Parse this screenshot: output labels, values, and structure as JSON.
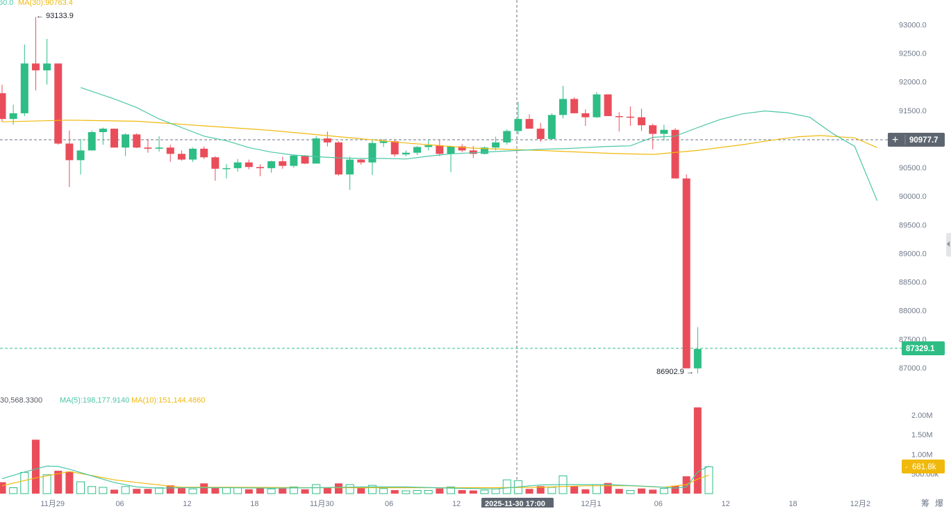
{
  "legend": {
    "price_prefix": "60.0",
    "ma30_label": "MA(30):90763.4",
    "volume_prefix": "30,568.3300",
    "vol_ma5_label": "MA(5):198,177.9140",
    "vol_ma10_label": "MA(10):151,144.4860"
  },
  "annotations": {
    "high_label": "93133.9",
    "low_label": "86902.9",
    "crosshair_price": "90977.7",
    "last_price": "87329.1",
    "volume_last": "681.8k",
    "crosshair_time": "2025-11-30 17:00"
  },
  "axis": {
    "price_ticks": [
      "93000.0",
      "92500.0",
      "92000.0",
      "91500.0",
      "91000.0",
      "90500.0",
      "90000.0",
      "89500.0",
      "89000.0",
      "88500.0",
      "88000.0",
      "87500.0",
      "87000.0"
    ],
    "volume_ticks": [
      "2.00M",
      "1.50M",
      "1.00M",
      "500.00k"
    ],
    "time_ticks": [
      "11月29",
      "06",
      "12",
      "18",
      "11月30",
      "06",
      "12",
      "12月1",
      "06",
      "12",
      "18",
      "12月2"
    ],
    "corner_buttons": [
      "筹",
      "爆"
    ]
  },
  "colors": {
    "up": "#2ebd85",
    "down": "#ea4d5a",
    "ma_fast": "#4bc6a6",
    "ma_slow": "#f0b90b",
    "crosshair_tag": "#5d6670",
    "grid_dash": "#9aa1aa"
  },
  "chart_data": {
    "type": "candlestick",
    "interval": "hourly",
    "candles": [
      {
        "t": "11-28 20:00",
        "o": 91800,
        "h": 91950,
        "l": 91300,
        "c": 91350
      },
      {
        "t": "11-28 21:00",
        "o": 91350,
        "h": 91600,
        "l": 91250,
        "c": 91450
      },
      {
        "t": "11-28 22:00",
        "o": 91450,
        "h": 92650,
        "l": 91400,
        "c": 92320
      },
      {
        "t": "11-28 23:00",
        "o": 92320,
        "h": 93133.9,
        "l": 91850,
        "c": 92200
      },
      {
        "t": "11-29 00:00",
        "o": 92200,
        "h": 92750,
        "l": 91950,
        "c": 92320
      },
      {
        "t": "11-29 01:00",
        "o": 92320,
        "h": 92320,
        "l": 90900,
        "c": 90920
      },
      {
        "t": "11-29 02:00",
        "o": 90920,
        "h": 91150,
        "l": 90160,
        "c": 90630
      },
      {
        "t": "11-29 03:00",
        "o": 90630,
        "h": 91000,
        "l": 90380,
        "c": 90800
      },
      {
        "t": "11-29 04:00",
        "o": 90800,
        "h": 91150,
        "l": 90800,
        "c": 91120
      },
      {
        "t": "11-29 05:00",
        "o": 91120,
        "h": 91200,
        "l": 90900,
        "c": 91180
      },
      {
        "t": "11-29 06:00",
        "o": 91180,
        "h": 91180,
        "l": 90860,
        "c": 90850
      },
      {
        "t": "11-29 07:00",
        "o": 90850,
        "h": 91100,
        "l": 90700,
        "c": 91080
      },
      {
        "t": "11-29 08:00",
        "o": 91080,
        "h": 91100,
        "l": 90840,
        "c": 90850
      },
      {
        "t": "11-29 09:00",
        "o": 90850,
        "h": 91000,
        "l": 90760,
        "c": 90830
      },
      {
        "t": "11-29 10:00",
        "o": 90830,
        "h": 91050,
        "l": 90780,
        "c": 90850
      },
      {
        "t": "11-29 11:00",
        "o": 90850,
        "h": 90900,
        "l": 90600,
        "c": 90740
      },
      {
        "t": "11-29 12:00",
        "o": 90740,
        "h": 90800,
        "l": 90620,
        "c": 90640
      },
      {
        "t": "11-29 13:00",
        "o": 90640,
        "h": 90850,
        "l": 90600,
        "c": 90830
      },
      {
        "t": "11-29 14:00",
        "o": 90830,
        "h": 90870,
        "l": 90650,
        "c": 90680
      },
      {
        "t": "11-29 15:00",
        "o": 90680,
        "h": 90700,
        "l": 90270,
        "c": 90480
      },
      {
        "t": "11-29 16:00",
        "o": 90480,
        "h": 90560,
        "l": 90310,
        "c": 90490
      },
      {
        "t": "11-29 17:00",
        "o": 90490,
        "h": 90650,
        "l": 90430,
        "c": 90590
      },
      {
        "t": "11-29 18:00",
        "o": 90590,
        "h": 90640,
        "l": 90470,
        "c": 90510
      },
      {
        "t": "11-29 19:00",
        "o": 90510,
        "h": 90560,
        "l": 90350,
        "c": 90490
      },
      {
        "t": "11-29 20:00",
        "o": 90490,
        "h": 90620,
        "l": 90410,
        "c": 90610
      },
      {
        "t": "11-29 21:00",
        "o": 90610,
        "h": 90690,
        "l": 90480,
        "c": 90530
      },
      {
        "t": "11-29 22:00",
        "o": 90530,
        "h": 90730,
        "l": 90500,
        "c": 90710
      },
      {
        "t": "11-29 23:00",
        "o": 90710,
        "h": 90720,
        "l": 90560,
        "c": 90570
      },
      {
        "t": "11-30 00:00",
        "o": 90570,
        "h": 91050,
        "l": 90570,
        "c": 91010
      },
      {
        "t": "11-30 01:00",
        "o": 91010,
        "h": 91130,
        "l": 90870,
        "c": 90940
      },
      {
        "t": "11-30 02:00",
        "o": 90940,
        "h": 90960,
        "l": 90360,
        "c": 90380
      },
      {
        "t": "11-30 03:00",
        "o": 90380,
        "h": 90690,
        "l": 90110,
        "c": 90640
      },
      {
        "t": "11-30 04:00",
        "o": 90640,
        "h": 90650,
        "l": 90550,
        "c": 90590
      },
      {
        "t": "11-30 05:00",
        "o": 90590,
        "h": 91000,
        "l": 90370,
        "c": 90930
      },
      {
        "t": "11-30 06:00",
        "o": 90930,
        "h": 91000,
        "l": 90860,
        "c": 90960
      },
      {
        "t": "11-30 07:00",
        "o": 90960,
        "h": 90980,
        "l": 90690,
        "c": 90730
      },
      {
        "t": "11-30 08:00",
        "o": 90730,
        "h": 90800,
        "l": 90700,
        "c": 90760
      },
      {
        "t": "11-30 09:00",
        "o": 90760,
        "h": 90880,
        "l": 90720,
        "c": 90860
      },
      {
        "t": "11-30 10:00",
        "o": 90860,
        "h": 90990,
        "l": 90800,
        "c": 90890
      },
      {
        "t": "11-30 11:00",
        "o": 90890,
        "h": 90980,
        "l": 90700,
        "c": 90740
      },
      {
        "t": "11-30 12:00",
        "o": 90740,
        "h": 90880,
        "l": 90420,
        "c": 90870
      },
      {
        "t": "11-30 13:00",
        "o": 90870,
        "h": 90910,
        "l": 90770,
        "c": 90800
      },
      {
        "t": "11-30 14:00",
        "o": 90800,
        "h": 90880,
        "l": 90670,
        "c": 90740
      },
      {
        "t": "11-30 15:00",
        "o": 90740,
        "h": 90870,
        "l": 90730,
        "c": 90850
      },
      {
        "t": "11-30 16:00",
        "o": 90850,
        "h": 91040,
        "l": 90800,
        "c": 90940
      },
      {
        "t": "11-30 17:00",
        "o": 90940,
        "h": 91170,
        "l": 90900,
        "c": 91140
      },
      {
        "t": "11-30 18:00",
        "o": 91140,
        "h": 91650,
        "l": 91080,
        "c": 91350
      },
      {
        "t": "11-30 19:00",
        "o": 91350,
        "h": 91430,
        "l": 91190,
        "c": 91180
      },
      {
        "t": "11-30 20:00",
        "o": 91180,
        "h": 91280,
        "l": 90950,
        "c": 91000
      },
      {
        "t": "11-30 21:00",
        "o": 91000,
        "h": 91450,
        "l": 90990,
        "c": 91420
      },
      {
        "t": "11-30 22:00",
        "o": 91420,
        "h": 91930,
        "l": 91360,
        "c": 91700
      },
      {
        "t": "11-30 23:00",
        "o": 91700,
        "h": 91730,
        "l": 91450,
        "c": 91450
      },
      {
        "t": "12-01 00:00",
        "o": 91450,
        "h": 91520,
        "l": 91230,
        "c": 91380
      },
      {
        "t": "12-01 01:00",
        "o": 91380,
        "h": 91820,
        "l": 91370,
        "c": 91780
      },
      {
        "t": "12-01 02:00",
        "o": 91780,
        "h": 91780,
        "l": 91400,
        "c": 91400
      },
      {
        "t": "12-01 03:00",
        "o": 91400,
        "h": 91470,
        "l": 91130,
        "c": 91390
      },
      {
        "t": "12-01 04:00",
        "o": 91390,
        "h": 91570,
        "l": 91230,
        "c": 91380
      },
      {
        "t": "12-01 05:00",
        "o": 91380,
        "h": 91530,
        "l": 91140,
        "c": 91240
      },
      {
        "t": "12-01 06:00",
        "o": 91240,
        "h": 91270,
        "l": 90820,
        "c": 91090
      },
      {
        "t": "12-01 07:00",
        "o": 91090,
        "h": 91250,
        "l": 90970,
        "c": 91160
      },
      {
        "t": "12-01 08:00",
        "o": 91160,
        "h": 91190,
        "l": 90310,
        "c": 90310
      },
      {
        "t": "12-01 09:00",
        "o": 90310,
        "h": 90380,
        "l": 86990,
        "c": 86990
      },
      {
        "t": "12-01 10:00",
        "o": 86990,
        "h": 87710,
        "l": 86902.9,
        "c": 87329.1
      }
    ],
    "ma_fast_price": [
      [
        7,
        91900
      ],
      [
        10,
        91700
      ],
      [
        12,
        91550
      ],
      [
        14,
        91350
      ],
      [
        16,
        91200
      ],
      [
        18,
        91050
      ],
      [
        20,
        90970
      ],
      [
        22,
        90850
      ],
      [
        24,
        90770
      ],
      [
        26,
        90720
      ],
      [
        28,
        90690
      ],
      [
        30,
        90670
      ],
      [
        32,
        90660
      ],
      [
        34,
        90660
      ],
      [
        36,
        90650
      ],
      [
        38,
        90700
      ],
      [
        40,
        90740
      ],
      [
        42,
        90760
      ],
      [
        44,
        90780
      ],
      [
        46,
        90800
      ],
      [
        48,
        90820
      ],
      [
        50,
        90830
      ],
      [
        52,
        90850
      ],
      [
        54,
        90870
      ],
      [
        56,
        90880
      ],
      [
        58,
        91030
      ],
      [
        60,
        91050
      ],
      [
        62,
        91200
      ],
      [
        64,
        91340
      ],
      [
        66,
        91440
      ],
      [
        68,
        91490
      ],
      [
        70,
        91460
      ],
      [
        72,
        91380
      ],
      [
        74,
        91100
      ],
      [
        76,
        90870
      ],
      [
        78,
        89920
      ]
    ],
    "ma30_price": [
      [
        0,
        91300
      ],
      [
        6,
        91330
      ],
      [
        12,
        91310
      ],
      [
        18,
        91230
      ],
      [
        24,
        91150
      ],
      [
        30,
        91040
      ],
      [
        36,
        90930
      ],
      [
        42,
        90840
      ],
      [
        48,
        90800
      ],
      [
        54,
        90750
      ],
      [
        58,
        90730
      ],
      [
        62,
        90800
      ],
      [
        66,
        90900
      ],
      [
        69,
        90990
      ],
      [
        71,
        91040
      ],
      [
        73,
        91060
      ],
      [
        76,
        91020
      ],
      [
        78,
        90850
      ]
    ],
    "volume": [
      {
        "v": 290000,
        "up": false
      },
      {
        "v": 150000,
        "up": true
      },
      {
        "v": 540000,
        "up": true
      },
      {
        "v": 1370000,
        "up": false
      },
      {
        "v": 480000,
        "up": true
      },
      {
        "v": 580000,
        "up": false
      },
      {
        "v": 560000,
        "up": false
      },
      {
        "v": 300000,
        "up": true
      },
      {
        "v": 180000,
        "up": true
      },
      {
        "v": 160000,
        "up": true
      },
      {
        "v": 100000,
        "up": false
      },
      {
        "v": 180000,
        "up": true
      },
      {
        "v": 120000,
        "up": false
      },
      {
        "v": 120000,
        "up": false
      },
      {
        "v": 150000,
        "up": true
      },
      {
        "v": 210000,
        "up": false
      },
      {
        "v": 140000,
        "up": false
      },
      {
        "v": 120000,
        "up": true
      },
      {
        "v": 260000,
        "up": false
      },
      {
        "v": 140000,
        "up": false
      },
      {
        "v": 160000,
        "up": true
      },
      {
        "v": 150000,
        "up": true
      },
      {
        "v": 110000,
        "up": false
      },
      {
        "v": 140000,
        "up": false
      },
      {
        "v": 120000,
        "up": true
      },
      {
        "v": 130000,
        "up": false
      },
      {
        "v": 170000,
        "up": true
      },
      {
        "v": 110000,
        "up": false
      },
      {
        "v": 230000,
        "up": true
      },
      {
        "v": 150000,
        "up": false
      },
      {
        "v": 260000,
        "up": false
      },
      {
        "v": 230000,
        "up": true
      },
      {
        "v": 140000,
        "up": false
      },
      {
        "v": 210000,
        "up": true
      },
      {
        "v": 130000,
        "up": true
      },
      {
        "v": 90000,
        "up": false
      },
      {
        "v": 70000,
        "up": true
      },
      {
        "v": 80000,
        "up": true
      },
      {
        "v": 80000,
        "up": true
      },
      {
        "v": 130000,
        "up": false
      },
      {
        "v": 170000,
        "up": true
      },
      {
        "v": 90000,
        "up": false
      },
      {
        "v": 80000,
        "up": false
      },
      {
        "v": 90000,
        "up": true
      },
      {
        "v": 120000,
        "up": true
      },
      {
        "v": 350000,
        "up": true
      },
      {
        "v": 330000,
        "up": true
      },
      {
        "v": 120000,
        "up": false
      },
      {
        "v": 190000,
        "up": false
      },
      {
        "v": 160000,
        "up": true
      },
      {
        "v": 450000,
        "up": true
      },
      {
        "v": 190000,
        "up": false
      },
      {
        "v": 110000,
        "up": false
      },
      {
        "v": 230000,
        "up": true
      },
      {
        "v": 270000,
        "up": false
      },
      {
        "v": 120000,
        "up": false
      },
      {
        "v": 80000,
        "up": true
      },
      {
        "v": 130000,
        "up": false
      },
      {
        "v": 100000,
        "up": false
      },
      {
        "v": 130000,
        "up": true
      },
      {
        "v": 200000,
        "up": false
      },
      {
        "v": 440000,
        "up": false
      },
      {
        "v": 2190000,
        "up": false
      },
      {
        "v": 681800,
        "up": true
      }
    ],
    "vol_ma5": [
      [
        0,
        380000
      ],
      [
        2,
        550000
      ],
      [
        4,
        700000
      ],
      [
        5,
        690000
      ],
      [
        6,
        620000
      ],
      [
        8,
        450000
      ],
      [
        10,
        280000
      ],
      [
        12,
        170000
      ],
      [
        14,
        140000
      ],
      [
        16,
        150000
      ],
      [
        20,
        150000
      ],
      [
        24,
        140000
      ],
      [
        28,
        150000
      ],
      [
        32,
        170000
      ],
      [
        36,
        170000
      ],
      [
        40,
        140000
      ],
      [
        44,
        120000
      ],
      [
        48,
        220000
      ],
      [
        50,
        230000
      ],
      [
        52,
        230000
      ],
      [
        54,
        230000
      ],
      [
        58,
        180000
      ],
      [
        60,
        140000
      ],
      [
        61,
        170000
      ],
      [
        62,
        550000
      ],
      [
        63,
        700000
      ]
    ],
    "vol_ma10": [
      [
        0,
        200000
      ],
      [
        3,
        400000
      ],
      [
        6,
        560000
      ],
      [
        8,
        460000
      ],
      [
        10,
        350000
      ],
      [
        13,
        250000
      ],
      [
        16,
        160000
      ],
      [
        20,
        160000
      ],
      [
        28,
        150000
      ],
      [
        36,
        150000
      ],
      [
        44,
        150000
      ],
      [
        48,
        160000
      ],
      [
        52,
        200000
      ],
      [
        56,
        200000
      ],
      [
        59,
        160000
      ],
      [
        61,
        230000
      ],
      [
        62,
        370000
      ],
      [
        63,
        470000
      ]
    ],
    "price_axis": {
      "min": 86902.9,
      "max": 93133.9,
      "right_side": true
    },
    "volume_axis": {
      "max": 2190000
    }
  }
}
